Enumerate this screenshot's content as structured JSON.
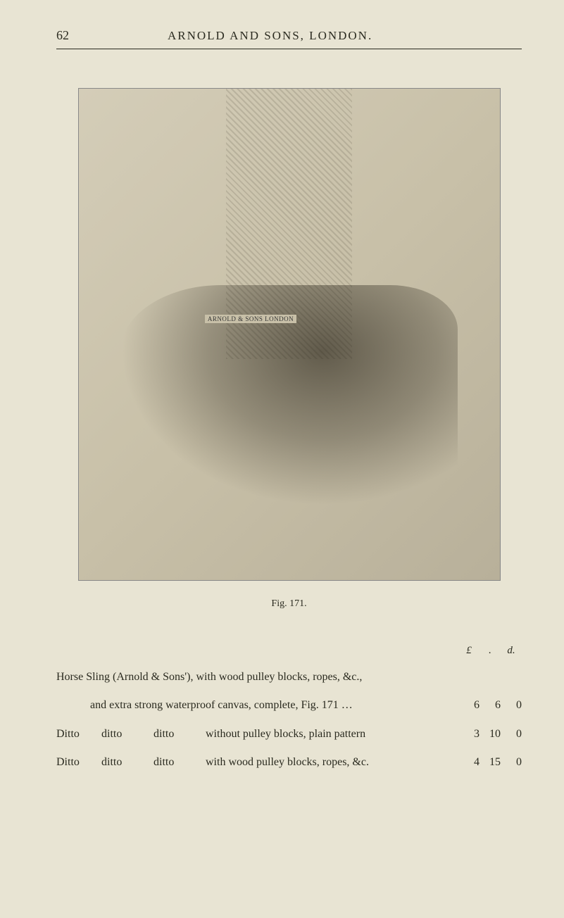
{
  "page": {
    "number": "62",
    "header_title": "ARNOLD AND SONS, LONDON."
  },
  "figure": {
    "caption": "Fig. 171.",
    "engraving_text": "ARNOLD & SONS LONDON",
    "description": "Horse Sling engraving"
  },
  "price_header": {
    "pounds": "£",
    "shillings": ".",
    "pence": "d."
  },
  "items": [
    {
      "line1": "Horse Sling (Arnold & Sons'), with wood pulley blocks, ropes, &c.,",
      "line2_prefix": "·",
      "line2": "and extra strong waterproof canvas, complete, Fig. 171",
      "dots": "…",
      "pounds": "6",
      "shillings": "6",
      "pence": "0"
    },
    {
      "col1": "Ditto",
      "col2": "ditto",
      "col3": "ditto",
      "desc": "without pulley blocks, plain pattern",
      "pounds": "3",
      "shillings": "10",
      "pence": "0"
    },
    {
      "col1": "Ditto",
      "col2": "ditto",
      "col3": "ditto",
      "desc": "with wood pulley blocks, ropes, &c.",
      "pounds": "4",
      "shillings": "15",
      "pence": "0"
    }
  ],
  "colors": {
    "page_bg": "#e8e4d3",
    "text": "#2a2a1f",
    "rule": "#2a2a1f"
  },
  "typography": {
    "body_font": "Georgia, Times New Roman, serif",
    "header_size_pt": 17,
    "body_size_pt": 16,
    "caption_size_pt": 14
  }
}
